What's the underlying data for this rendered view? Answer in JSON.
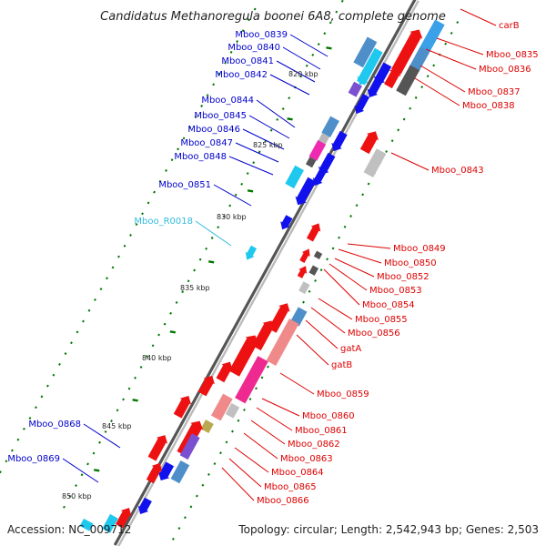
{
  "title": "Candidatus Methanoregula boonei 6A8, complete genome",
  "accession": "Accession: NC_009712",
  "topology": "Topology: circular; Length: 2,542,943 bp; Genes: 2,503",
  "colors": {
    "forward_label": "#0000cc",
    "reverse_label": "#dd0000",
    "rna_label": "#33bbdd",
    "backbone": "#888888",
    "tick": "#007700"
  },
  "kbp_ticks": [
    "820 kbp",
    "825 kbp",
    "830 kbp",
    "835 kbp",
    "840 kbp",
    "845 kbp",
    "850 kbp"
  ],
  "forward_genes": [
    "Mboo_0839",
    "Mboo_0840",
    "Mboo_0841",
    "Mboo_0842",
    "Mboo_0844",
    "Mboo_0845",
    "Mboo_0846",
    "Mboo_0847",
    "Mboo_0848",
    "Mboo_0851",
    "Mboo_0868",
    "Mboo_0869"
  ],
  "rna_genes": [
    "Mboo_R0018"
  ],
  "reverse_genes": [
    "carB",
    "Mboo_0835",
    "Mboo_0836",
    "Mboo_0837",
    "Mboo_0838",
    "Mboo_0843",
    "Mboo_0849",
    "Mboo_0850",
    "Mboo_0852",
    "Mboo_0853",
    "Mboo_0854",
    "Mboo_0855",
    "Mboo_0856",
    "gatA",
    "gatB",
    "Mboo_0859",
    "Mboo_0860",
    "Mboo_0861",
    "Mboo_0862",
    "Mboo_0863",
    "Mboo_0864",
    "Mboo_0865",
    "Mboo_0866"
  ]
}
